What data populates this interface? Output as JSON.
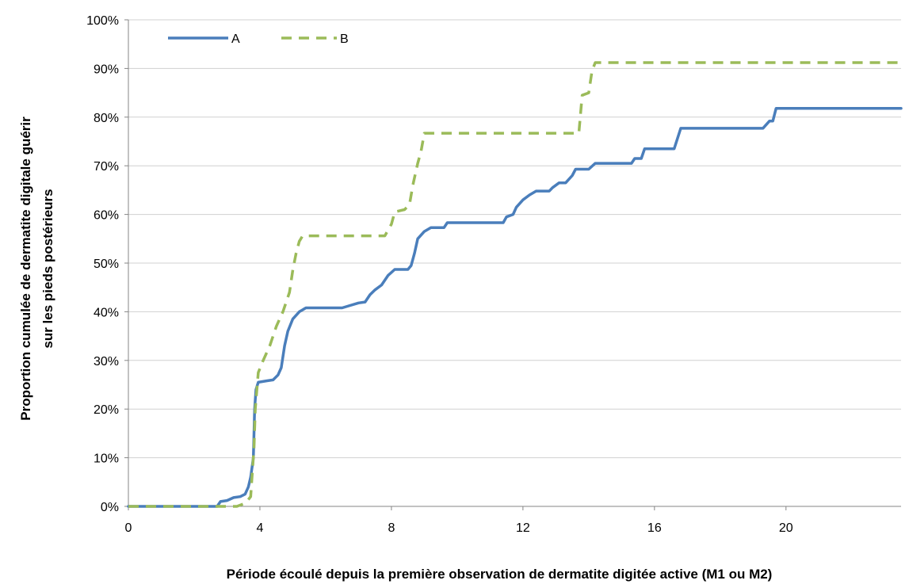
{
  "chart_data": {
    "type": "line",
    "title": "",
    "xlabel": "Période écoulé depuis la première observation de dermatite digitée active (M1 ou M2)",
    "ylabel_line1": "Proportion cumulée de dermatite digitale guérir",
    "ylabel_line2": "sur les pieds postérieurs",
    "xlim": [
      0,
      23.5
    ],
    "ylim": [
      0,
      100
    ],
    "xticks": [
      0,
      4,
      8,
      12,
      16,
      20
    ],
    "xtick_labels": [
      "0",
      "4",
      "8",
      "12",
      "16",
      "20"
    ],
    "yticks": [
      0,
      10,
      20,
      30,
      40,
      50,
      60,
      70,
      80,
      90,
      100
    ],
    "ytick_labels": [
      "0%",
      "10%",
      "20%",
      "30%",
      "40%",
      "50%",
      "60%",
      "70%",
      "80%",
      "90%",
      "100%"
    ],
    "grid": true,
    "legend_position": "top-left",
    "series": [
      {
        "name": "A",
        "color": "#4a7ebb",
        "style": "solid",
        "points": [
          [
            0,
            0
          ],
          [
            2.7,
            0
          ],
          [
            2.8,
            1
          ],
          [
            3.0,
            1.2
          ],
          [
            3.2,
            1.8
          ],
          [
            3.4,
            2
          ],
          [
            3.55,
            2.5
          ],
          [
            3.65,
            4
          ],
          [
            3.72,
            6
          ],
          [
            3.8,
            10
          ],
          [
            3.84,
            20
          ],
          [
            3.88,
            24
          ],
          [
            3.95,
            25.5
          ],
          [
            4.2,
            25.8
          ],
          [
            4.4,
            26
          ],
          [
            4.55,
            27
          ],
          [
            4.65,
            28.5
          ],
          [
            4.75,
            33
          ],
          [
            4.85,
            36
          ],
          [
            5.0,
            38.5
          ],
          [
            5.2,
            40
          ],
          [
            5.4,
            40.8
          ],
          [
            6.5,
            40.8
          ],
          [
            6.7,
            41.2
          ],
          [
            7.0,
            41.8
          ],
          [
            7.2,
            42
          ],
          [
            7.35,
            43.5
          ],
          [
            7.5,
            44.5
          ],
          [
            7.7,
            45.5
          ],
          [
            7.9,
            47.5
          ],
          [
            8.1,
            48.7
          ],
          [
            8.5,
            48.7
          ],
          [
            8.6,
            49.5
          ],
          [
            8.7,
            52
          ],
          [
            8.8,
            55
          ],
          [
            9.0,
            56.5
          ],
          [
            9.2,
            57.3
          ],
          [
            9.6,
            57.3
          ],
          [
            9.7,
            58.3
          ],
          [
            11.4,
            58.3
          ],
          [
            11.5,
            59.5
          ],
          [
            11.7,
            60
          ],
          [
            11.8,
            61.5
          ],
          [
            12.0,
            63
          ],
          [
            12.2,
            64
          ],
          [
            12.4,
            64.8
          ],
          [
            12.8,
            64.8
          ],
          [
            12.9,
            65.5
          ],
          [
            13.1,
            66.5
          ],
          [
            13.3,
            66.5
          ],
          [
            13.5,
            68
          ],
          [
            13.6,
            69.3
          ],
          [
            14.0,
            69.3
          ],
          [
            14.2,
            70.5
          ],
          [
            15.3,
            70.5
          ],
          [
            15.4,
            71.5
          ],
          [
            15.6,
            71.5
          ],
          [
            15.7,
            73.5
          ],
          [
            16.6,
            73.5
          ],
          [
            16.8,
            77.7
          ],
          [
            19.3,
            77.7
          ],
          [
            19.5,
            79.2
          ],
          [
            19.6,
            79.2
          ],
          [
            19.7,
            81.8
          ],
          [
            23.5,
            81.8
          ]
        ]
      },
      {
        "name": "B",
        "color": "#9bbb59",
        "style": "dashed",
        "points": [
          [
            0,
            0
          ],
          [
            3.3,
            0
          ],
          [
            3.5,
            0.5
          ],
          [
            3.6,
            1
          ],
          [
            3.72,
            2
          ],
          [
            3.78,
            8
          ],
          [
            3.82,
            12
          ],
          [
            3.86,
            20
          ],
          [
            3.95,
            27.5
          ],
          [
            4.1,
            30
          ],
          [
            4.3,
            33
          ],
          [
            4.5,
            37
          ],
          [
            4.7,
            40
          ],
          [
            4.9,
            44
          ],
          [
            5.0,
            48.5
          ],
          [
            5.1,
            52
          ],
          [
            5.2,
            54.5
          ],
          [
            5.3,
            55.6
          ],
          [
            7.8,
            55.6
          ],
          [
            8.0,
            58
          ],
          [
            8.1,
            60.5
          ],
          [
            8.4,
            61
          ],
          [
            8.55,
            62
          ],
          [
            8.65,
            66
          ],
          [
            8.8,
            70.5
          ],
          [
            8.9,
            73
          ],
          [
            9.0,
            76.7
          ],
          [
            13.7,
            76.7
          ],
          [
            13.8,
            84.5
          ],
          [
            14.0,
            85
          ],
          [
            14.1,
            89.5
          ],
          [
            14.2,
            91.2
          ],
          [
            23.5,
            91.2
          ]
        ]
      }
    ]
  }
}
